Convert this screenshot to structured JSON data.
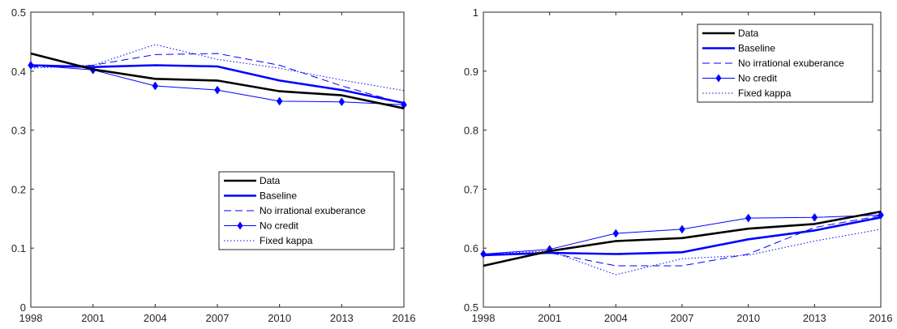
{
  "colors": {
    "data": "#000000",
    "model": "#0000ff",
    "axis": "#262626"
  },
  "chart_data": [
    {
      "type": "line",
      "x": [
        1998,
        2001,
        2004,
        2007,
        2010,
        2013,
        2016
      ],
      "xticks": [
        "1998",
        "2001",
        "2004",
        "2007",
        "2010",
        "2013",
        "2016"
      ],
      "ylim": [
        0,
        0.5
      ],
      "yticks": [
        "0",
        "0.1",
        "0.2",
        "0.3",
        "0.4",
        "0.5"
      ],
      "yticks_values": [
        0,
        0.1,
        0.2,
        0.3,
        0.4,
        0.5
      ],
      "legend_position": "bottom-right",
      "grid": false,
      "series": [
        {
          "name": "Data",
          "style": "thick-black",
          "values": [
            0.43,
            0.403,
            0.387,
            0.384,
            0.366,
            0.359,
            0.337
          ]
        },
        {
          "name": "Baseline",
          "style": "thick-blue",
          "values": [
            0.41,
            0.407,
            0.41,
            0.408,
            0.384,
            0.368,
            0.346
          ]
        },
        {
          "name": "No irrational exuberance",
          "style": "dashed-blue",
          "values": [
            0.407,
            0.41,
            0.428,
            0.43,
            0.41,
            0.375,
            0.345
          ]
        },
        {
          "name": "No credit",
          "style": "diamond-blue",
          "values": [
            0.41,
            0.402,
            0.375,
            0.368,
            0.349,
            0.348,
            0.343
          ]
        },
        {
          "name": "Fixed kappa",
          "style": "dotted-blue",
          "values": [
            0.405,
            0.41,
            0.445,
            0.42,
            0.405,
            0.385,
            0.367
          ]
        }
      ]
    },
    {
      "type": "line",
      "x": [
        1998,
        2001,
        2004,
        2007,
        2010,
        2013,
        2016
      ],
      "xticks": [
        "1998",
        "2001",
        "2004",
        "2007",
        "2010",
        "2013",
        "2016"
      ],
      "ylim": [
        0.5,
        1
      ],
      "yticks": [
        "0.5",
        "0.6",
        "0.7",
        "0.8",
        "0.9",
        "1"
      ],
      "yticks_values": [
        0.5,
        0.6,
        0.7,
        0.8,
        0.9,
        1.0
      ],
      "legend_position": "top-right",
      "grid": false,
      "series": [
        {
          "name": "Data",
          "style": "thick-black",
          "values": [
            0.57,
            0.595,
            0.612,
            0.617,
            0.633,
            0.641,
            0.662
          ]
        },
        {
          "name": "Baseline",
          "style": "thick-blue",
          "values": [
            0.588,
            0.592,
            0.59,
            0.593,
            0.615,
            0.63,
            0.652
          ]
        },
        {
          "name": "No irrational exuberance",
          "style": "dashed-blue",
          "values": [
            0.59,
            0.592,
            0.57,
            0.57,
            0.59,
            0.635,
            0.655
          ]
        },
        {
          "name": "No credit",
          "style": "diamond-blue",
          "values": [
            0.59,
            0.598,
            0.625,
            0.632,
            0.651,
            0.652,
            0.656
          ]
        },
        {
          "name": "Fixed kappa",
          "style": "dotted-blue",
          "values": [
            0.59,
            0.595,
            0.555,
            0.582,
            0.588,
            0.612,
            0.632
          ]
        }
      ]
    }
  ]
}
